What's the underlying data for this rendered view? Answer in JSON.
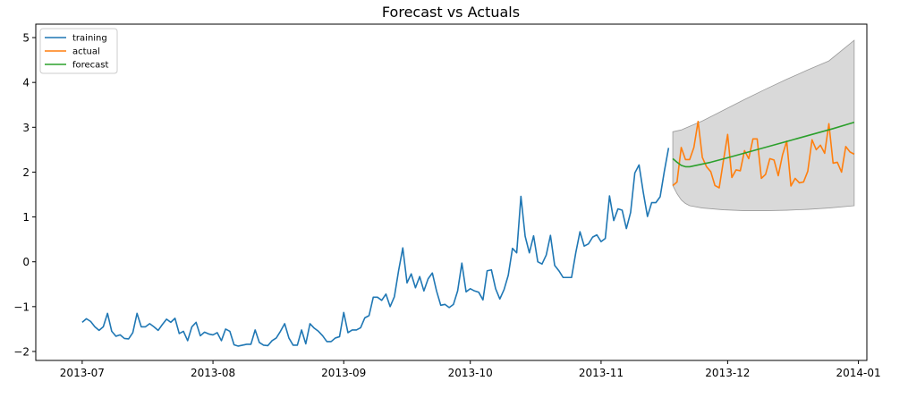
{
  "chart_data": {
    "type": "line",
    "title": "Forecast vs Actuals",
    "xlabel": "",
    "ylabel": "",
    "x_axis": {
      "type": "date",
      "range": [
        "2013-06-20",
        "2014-01-03"
      ],
      "ticks": [
        {
          "date": "2013-07-01",
          "label": "2013-07"
        },
        {
          "date": "2013-08-01",
          "label": "2013-08"
        },
        {
          "date": "2013-09-01",
          "label": "2013-09"
        },
        {
          "date": "2013-10-01",
          "label": "2013-10"
        },
        {
          "date": "2013-11-01",
          "label": "2013-11"
        },
        {
          "date": "2013-12-01",
          "label": "2013-12"
        },
        {
          "date": "2014-01-01",
          "label": "2014-01"
        }
      ]
    },
    "y_axis": {
      "range": [
        -2.2,
        5.3
      ],
      "ticks": [
        {
          "value": -2,
          "label": "−2"
        },
        {
          "value": -1,
          "label": "−1"
        },
        {
          "value": 0,
          "label": "0"
        },
        {
          "value": 1,
          "label": "1"
        },
        {
          "value": 2,
          "label": "2"
        },
        {
          "value": 3,
          "label": "3"
        },
        {
          "value": 4,
          "label": "4"
        },
        {
          "value": 5,
          "label": "5"
        }
      ]
    },
    "grid": false,
    "legend": {
      "position": "top-left",
      "entries": [
        {
          "label": "training",
          "color": "#1f77b4"
        },
        {
          "label": "actual",
          "color": "#ff7f0e"
        },
        {
          "label": "forecast",
          "color": "#2ca02c"
        }
      ]
    },
    "series": [
      {
        "name": "training",
        "color": "#1f77b4",
        "points": [
          [
            "2013-07-01",
            -1.35
          ],
          [
            "2013-07-02",
            -1.27
          ],
          [
            "2013-07-03",
            -1.33
          ],
          [
            "2013-07-04",
            -1.45
          ],
          [
            "2013-07-05",
            -1.53
          ],
          [
            "2013-07-06",
            -1.45
          ],
          [
            "2013-07-07",
            -1.15
          ],
          [
            "2013-07-08",
            -1.55
          ],
          [
            "2013-07-09",
            -1.66
          ],
          [
            "2013-07-10",
            -1.63
          ],
          [
            "2013-07-11",
            -1.71
          ],
          [
            "2013-07-12",
            -1.72
          ],
          [
            "2013-07-13",
            -1.58
          ],
          [
            "2013-07-14",
            -1.15
          ],
          [
            "2013-07-15",
            -1.45
          ],
          [
            "2013-07-16",
            -1.45
          ],
          [
            "2013-07-17",
            -1.38
          ],
          [
            "2013-07-18",
            -1.45
          ],
          [
            "2013-07-19",
            -1.53
          ],
          [
            "2013-07-20",
            -1.4
          ],
          [
            "2013-07-21",
            -1.28
          ],
          [
            "2013-07-22",
            -1.35
          ],
          [
            "2013-07-23",
            -1.26
          ],
          [
            "2013-07-24",
            -1.6
          ],
          [
            "2013-07-25",
            -1.55
          ],
          [
            "2013-07-26",
            -1.76
          ],
          [
            "2013-07-27",
            -1.45
          ],
          [
            "2013-07-28",
            -1.35
          ],
          [
            "2013-07-29",
            -1.65
          ],
          [
            "2013-07-30",
            -1.57
          ],
          [
            "2013-07-31",
            -1.61
          ],
          [
            "2013-08-01",
            -1.63
          ],
          [
            "2013-08-02",
            -1.58
          ],
          [
            "2013-08-03",
            -1.76
          ],
          [
            "2013-08-04",
            -1.5
          ],
          [
            "2013-08-05",
            -1.55
          ],
          [
            "2013-08-06",
            -1.85
          ],
          [
            "2013-08-07",
            -1.88
          ],
          [
            "2013-08-08",
            -1.86
          ],
          [
            "2013-08-09",
            -1.84
          ],
          [
            "2013-08-10",
            -1.84
          ],
          [
            "2013-08-11",
            -1.52
          ],
          [
            "2013-08-12",
            -1.8
          ],
          [
            "2013-08-13",
            -1.86
          ],
          [
            "2013-08-14",
            -1.87
          ],
          [
            "2013-08-15",
            -1.76
          ],
          [
            "2013-08-16",
            -1.7
          ],
          [
            "2013-08-17",
            -1.55
          ],
          [
            "2013-08-18",
            -1.38
          ],
          [
            "2013-08-19",
            -1.7
          ],
          [
            "2013-08-20",
            -1.86
          ],
          [
            "2013-08-21",
            -1.86
          ],
          [
            "2013-08-22",
            -1.52
          ],
          [
            "2013-08-23",
            -1.83
          ],
          [
            "2013-08-24",
            -1.38
          ],
          [
            "2013-08-25",
            -1.48
          ],
          [
            "2013-08-26",
            -1.55
          ],
          [
            "2013-08-27",
            -1.65
          ],
          [
            "2013-08-28",
            -1.78
          ],
          [
            "2013-08-29",
            -1.78
          ],
          [
            "2013-08-30",
            -1.7
          ],
          [
            "2013-08-31",
            -1.67
          ],
          [
            "2013-09-01",
            -1.13
          ],
          [
            "2013-09-02",
            -1.58
          ],
          [
            "2013-09-03",
            -1.52
          ],
          [
            "2013-09-04",
            -1.52
          ],
          [
            "2013-09-05",
            -1.47
          ],
          [
            "2013-09-06",
            -1.25
          ],
          [
            "2013-09-07",
            -1.2
          ],
          [
            "2013-09-08",
            -0.79
          ],
          [
            "2013-09-09",
            -0.79
          ],
          [
            "2013-09-10",
            -0.86
          ],
          [
            "2013-09-11",
            -0.72
          ],
          [
            "2013-09-12",
            -1.0
          ],
          [
            "2013-09-13",
            -0.78
          ],
          [
            "2013-09-14",
            -0.2
          ],
          [
            "2013-09-15",
            0.31
          ],
          [
            "2013-09-16",
            -0.47
          ],
          [
            "2013-09-17",
            -0.27
          ],
          [
            "2013-09-18",
            -0.58
          ],
          [
            "2013-09-19",
            -0.33
          ],
          [
            "2013-09-20",
            -0.65
          ],
          [
            "2013-09-21",
            -0.38
          ],
          [
            "2013-09-22",
            -0.25
          ],
          [
            "2013-09-23",
            -0.65
          ],
          [
            "2013-09-24",
            -0.97
          ],
          [
            "2013-09-25",
            -0.95
          ],
          [
            "2013-09-26",
            -1.02
          ],
          [
            "2013-09-27",
            -0.95
          ],
          [
            "2013-09-28",
            -0.65
          ],
          [
            "2013-09-29",
            -0.03
          ],
          [
            "2013-09-30",
            -0.67
          ],
          [
            "2013-10-01",
            -0.6
          ],
          [
            "2013-10-02",
            -0.65
          ],
          [
            "2013-10-03",
            -0.68
          ],
          [
            "2013-10-04",
            -0.85
          ],
          [
            "2013-10-05",
            -0.2
          ],
          [
            "2013-10-06",
            -0.18
          ],
          [
            "2013-10-07",
            -0.6
          ],
          [
            "2013-10-08",
            -0.83
          ],
          [
            "2013-10-09",
            -0.62
          ],
          [
            "2013-10-10",
            -0.3
          ],
          [
            "2013-10-11",
            0.3
          ],
          [
            "2013-10-12",
            0.2
          ],
          [
            "2013-10-13",
            1.46
          ],
          [
            "2013-10-14",
            0.57
          ],
          [
            "2013-10-15",
            0.2
          ],
          [
            "2013-10-16",
            0.58
          ],
          [
            "2013-10-17",
            0.0
          ],
          [
            "2013-10-18",
            -0.05
          ],
          [
            "2013-10-19",
            0.15
          ],
          [
            "2013-10-20",
            0.59
          ],
          [
            "2013-10-21",
            -0.08
          ],
          [
            "2013-10-22",
            -0.2
          ],
          [
            "2013-10-23",
            -0.35
          ],
          [
            "2013-10-24",
            -0.35
          ],
          [
            "2013-10-25",
            -0.35
          ],
          [
            "2013-10-26",
            0.2
          ],
          [
            "2013-10-27",
            0.67
          ],
          [
            "2013-10-28",
            0.35
          ],
          [
            "2013-10-29",
            0.4
          ],
          [
            "2013-10-30",
            0.55
          ],
          [
            "2013-10-31",
            0.6
          ],
          [
            "2013-11-01",
            0.45
          ],
          [
            "2013-11-02",
            0.52
          ],
          [
            "2013-11-03",
            1.47
          ],
          [
            "2013-11-04",
            0.92
          ],
          [
            "2013-11-05",
            1.18
          ],
          [
            "2013-11-06",
            1.15
          ],
          [
            "2013-11-07",
            0.74
          ],
          [
            "2013-11-08",
            1.1
          ],
          [
            "2013-11-09",
            1.98
          ],
          [
            "2013-11-10",
            2.16
          ],
          [
            "2013-11-11",
            1.55
          ],
          [
            "2013-11-12",
            1.01
          ],
          [
            "2013-11-13",
            1.32
          ],
          [
            "2013-11-14",
            1.32
          ],
          [
            "2013-11-15",
            1.45
          ],
          [
            "2013-11-16",
            2.02
          ],
          [
            "2013-11-17",
            2.54
          ]
        ]
      },
      {
        "name": "actual",
        "color": "#ff7f0e",
        "points": [
          [
            "2013-11-18",
            1.7
          ],
          [
            "2013-11-19",
            1.78
          ],
          [
            "2013-11-20",
            2.55
          ],
          [
            "2013-11-21",
            2.28
          ],
          [
            "2013-11-22",
            2.28
          ],
          [
            "2013-11-23",
            2.55
          ],
          [
            "2013-11-24",
            3.13
          ],
          [
            "2013-11-25",
            2.33
          ],
          [
            "2013-11-26",
            2.12
          ],
          [
            "2013-11-27",
            2.01
          ],
          [
            "2013-11-28",
            1.7
          ],
          [
            "2013-11-29",
            1.65
          ],
          [
            "2013-11-30",
            2.25
          ],
          [
            "2013-12-01",
            2.84
          ],
          [
            "2013-12-02",
            1.88
          ],
          [
            "2013-12-03",
            2.05
          ],
          [
            "2013-12-04",
            2.03
          ],
          [
            "2013-12-05",
            2.48
          ],
          [
            "2013-12-06",
            2.3
          ],
          [
            "2013-12-07",
            2.74
          ],
          [
            "2013-12-08",
            2.74
          ],
          [
            "2013-12-09",
            1.86
          ],
          [
            "2013-12-10",
            1.95
          ],
          [
            "2013-12-11",
            2.3
          ],
          [
            "2013-12-12",
            2.27
          ],
          [
            "2013-12-13",
            1.92
          ],
          [
            "2013-12-14",
            2.38
          ],
          [
            "2013-12-15",
            2.69
          ],
          [
            "2013-12-16",
            1.69
          ],
          [
            "2013-12-17",
            1.86
          ],
          [
            "2013-12-18",
            1.76
          ],
          [
            "2013-12-19",
            1.78
          ],
          [
            "2013-12-20",
            2.02
          ],
          [
            "2013-12-21",
            2.72
          ],
          [
            "2013-12-22",
            2.5
          ],
          [
            "2013-12-23",
            2.6
          ],
          [
            "2013-12-24",
            2.42
          ],
          [
            "2013-12-25",
            3.08
          ],
          [
            "2013-12-26",
            2.2
          ],
          [
            "2013-12-27",
            2.22
          ],
          [
            "2013-12-28",
            2.0
          ],
          [
            "2013-12-29",
            2.57
          ],
          [
            "2013-12-30",
            2.45
          ],
          [
            "2013-12-31",
            2.4
          ]
        ]
      },
      {
        "name": "forecast",
        "color": "#2ca02c",
        "points": [
          [
            "2013-11-18",
            2.3
          ],
          [
            "2013-11-19",
            2.22
          ],
          [
            "2013-11-20",
            2.15
          ],
          [
            "2013-11-21",
            2.12
          ],
          [
            "2013-11-22",
            2.12
          ],
          [
            "2013-11-24",
            2.16
          ],
          [
            "2013-11-27",
            2.22
          ],
          [
            "2013-12-01",
            2.32
          ],
          [
            "2013-12-06",
            2.45
          ],
          [
            "2013-12-11",
            2.58
          ],
          [
            "2013-12-16",
            2.71
          ],
          [
            "2013-12-21",
            2.84
          ],
          [
            "2013-12-26",
            2.97
          ],
          [
            "2013-12-31",
            3.11
          ]
        ]
      }
    ],
    "confidence_band": {
      "color": "#bfbfbf",
      "upper": [
        [
          "2013-11-18",
          2.9
        ],
        [
          "2013-11-20",
          2.94
        ],
        [
          "2013-11-22",
          3.02
        ],
        [
          "2013-11-25",
          3.14
        ],
        [
          "2013-11-30",
          3.38
        ],
        [
          "2013-12-05",
          3.62
        ],
        [
          "2013-12-10",
          3.85
        ],
        [
          "2013-12-15",
          4.07
        ],
        [
          "2013-12-20",
          4.28
        ],
        [
          "2013-12-25",
          4.48
        ],
        [
          "2013-12-31",
          4.94
        ]
      ],
      "lower": [
        [
          "2013-11-18",
          1.7
        ],
        [
          "2013-11-19",
          1.52
        ],
        [
          "2013-11-20",
          1.38
        ],
        [
          "2013-11-21",
          1.3
        ],
        [
          "2013-11-22",
          1.25
        ],
        [
          "2013-11-25",
          1.2
        ],
        [
          "2013-11-30",
          1.16
        ],
        [
          "2013-12-05",
          1.14
        ],
        [
          "2013-12-10",
          1.14
        ],
        [
          "2013-12-15",
          1.15
        ],
        [
          "2013-12-20",
          1.17
        ],
        [
          "2013-12-25",
          1.2
        ],
        [
          "2013-12-31",
          1.25
        ]
      ]
    }
  }
}
